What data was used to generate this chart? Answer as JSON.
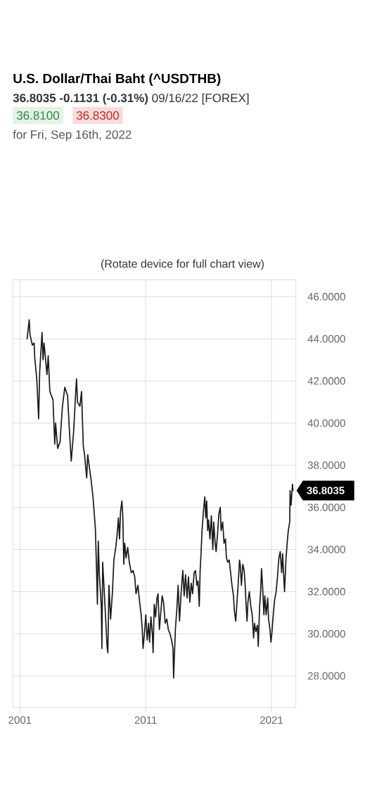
{
  "chart_data": {
    "type": "line",
    "title": "U.S. Dollar/Thai Baht (^USDTHB)",
    "subtitle": "**36.8035 -0.1131 (-0.31%)** 09/16/22 [FOREX]",
    "annotations": [
      "36.8100",
      "36.8300",
      "for Fri, Sep 16th, 2022",
      "(Rotate device for full chart view)",
      "36.8035"
    ],
    "x": [
      2001.57,
      2001.74,
      2001.8,
      2001.99,
      2002.13,
      2002.18,
      2002.34,
      2002.49,
      2002.57,
      2002.76,
      2002.84,
      2002.92,
      2003.15,
      2003.25,
      2003.38,
      2003.63,
      2003.77,
      2003.84,
      2004.0,
      2004.19,
      2004.38,
      2004.57,
      2004.79,
      2004.96,
      2005.08,
      2005.27,
      2005.42,
      2005.5,
      2005.58,
      2005.77,
      2005.9,
      2006.04,
      2006.14,
      2006.31,
      2006.39,
      2006.66,
      2006.81,
      2007.0,
      2007.1,
      2007.16,
      2007.23,
      2007.31,
      2007.47,
      2007.52,
      2007.58,
      2007.74,
      2007.93,
      2007.99,
      2008.08,
      2008.21,
      2008.36,
      2008.47,
      2008.62,
      2008.73,
      2008.83,
      2008.92,
      2009.0,
      2009.11,
      2009.18,
      2009.26,
      2009.33,
      2009.44,
      2009.57,
      2009.7,
      2009.85,
      2010.0,
      2010.13,
      2010.23,
      2010.38,
      2010.52,
      2010.64,
      2010.73,
      2010.79,
      2010.9,
      2011.01,
      2011.12,
      2011.23,
      2011.31,
      2011.42,
      2011.53,
      2011.59,
      2011.68,
      2011.79,
      2011.9,
      2011.98,
      2012.09,
      2012.2,
      2012.31,
      2012.42,
      2012.55,
      2012.68,
      2012.8,
      2012.93,
      2013.06,
      2013.17,
      2013.22,
      2013.36,
      2013.47,
      2013.58,
      2013.69,
      2013.8,
      2013.95,
      2014.06,
      2014.17,
      2014.29,
      2014.4,
      2014.51,
      2014.62,
      2014.73,
      2014.85,
      2014.96,
      2015.07,
      2015.16,
      2015.26,
      2015.33,
      2015.4,
      2015.48,
      2015.59,
      2015.7,
      2015.78,
      2015.85,
      2015.93,
      2016.0,
      2016.11,
      2016.22,
      2016.34,
      2016.41,
      2016.52,
      2016.6,
      2016.71,
      2016.82,
      2016.93,
      2017.0,
      2017.12,
      2017.23,
      2017.34,
      2017.42,
      2017.53,
      2017.64,
      2017.75,
      2017.86,
      2017.98,
      2018.05,
      2018.16,
      2018.27,
      2018.35,
      2018.46,
      2018.53,
      2018.61,
      2018.72,
      2018.83,
      2018.91,
      2018.98,
      2019.06,
      2019.13,
      2019.24,
      2019.36,
      2019.47,
      2019.58,
      2019.65,
      2019.76,
      2019.88,
      2019.95,
      2020.06,
      2020.14,
      2020.21,
      2020.29,
      2020.4,
      2020.47,
      2020.58,
      2020.7,
      2020.77,
      2020.88,
      2020.96,
      2021.03,
      2021.14,
      2021.25,
      2021.37,
      2021.48,
      2021.59,
      2021.7,
      2021.81,
      2021.89,
      2021.96,
      2022.04,
      2022.15,
      2022.26,
      2022.34,
      2022.45,
      2022.48,
      2022.56,
      2022.67,
      2022.71
    ],
    "values": [
      44.0,
      44.9,
      44.2,
      43.7,
      43.8,
      43.1,
      42.1,
      40.2,
      42.4,
      44.3,
      43.0,
      43.8,
      42.3,
      43.2,
      41.5,
      41.1,
      39.0,
      40.0,
      38.8,
      39.1,
      40.8,
      41.7,
      41.3,
      39.4,
      38.2,
      39.6,
      41.3,
      42.1,
      41.0,
      40.8,
      41.5,
      38.9,
      38.5,
      37.4,
      38.5,
      37.3,
      36.5,
      35.0,
      32.9,
      31.4,
      34.4,
      32.9,
      31.3,
      29.3,
      33.4,
      31.6,
      29.4,
      29.1,
      32.3,
      30.7,
      32.0,
      33.5,
      34.1,
      34.7,
      35.5,
      34.5,
      35.8,
      36.3,
      35.6,
      33.3,
      34.3,
      33.6,
      34.1,
      33.4,
      32.9,
      33.0,
      32.7,
      31.9,
      32.3,
      31.5,
      30.9,
      30.2,
      29.3,
      30.0,
      30.9,
      29.7,
      30.5,
      29.6,
      30.8,
      30.0,
      29.1,
      31.4,
      30.8,
      31.7,
      31.9,
      30.2,
      31.0,
      31.8,
      31.5,
      30.5,
      30.7,
      30.2,
      30.0,
      29.7,
      29.3,
      27.9,
      30.2,
      31.1,
      32.3,
      30.6,
      31.8,
      33.0,
      31.8,
      32.8,
      31.7,
      32.7,
      31.5,
      32.4,
      31.9,
      32.9,
      33.0,
      32.3,
      32.5,
      31.3,
      33.0,
      33.8,
      34.9,
      35.8,
      36.5,
      35.5,
      36.3,
      34.9,
      35.4,
      34.5,
      35.6,
      34.0,
      35.3,
      34.3,
      33.9,
      34.7,
      35.7,
      36.0,
      34.9,
      35.3,
      34.3,
      34.5,
      33.6,
      33.4,
      33.5,
      32.9,
      32.3,
      31.8,
      31.1,
      30.6,
      31.6,
      32.3,
      33.5,
      33.2,
      32.3,
      33.3,
      33.0,
      32.3,
      31.4,
      30.6,
      31.5,
      32.0,
      31.3,
      30.9,
      29.8,
      30.5,
      30.1,
      30.4,
      29.4,
      31.3,
      32.0,
      33.1,
      32.3,
      30.9,
      31.8,
      30.9,
      31.7,
      30.7,
      30.2,
      29.6,
      30.0,
      30.9,
      31.6,
      32.0,
      32.7,
      33.6,
      33.9,
      32.9,
      33.8,
      32.9,
      32.0,
      33.5,
      34.4,
      34.9,
      35.3,
      36.8,
      36.1,
      37.1,
      36.8
    ],
    "color": "#1a1a1a",
    "xlim": [
      2000.44,
      2022.94
    ],
    "ylim": [
      26.5,
      46.8
    ],
    "xticks": [
      2001,
      2011,
      2021
    ],
    "yticks": [
      {
        "value": 28,
        "label": "28.0000"
      },
      {
        "value": 30,
        "label": "30.0000"
      },
      {
        "value": 32,
        "label": "32.0000"
      },
      {
        "value": 34,
        "label": "34.0000"
      },
      {
        "value": 36,
        "label": "36.0000"
      },
      {
        "value": 38,
        "label": "38.0000"
      },
      {
        "value": 40,
        "label": "40.0000"
      },
      {
        "value": 42,
        "label": "42.0000"
      },
      {
        "value": 44,
        "label": "44.0000"
      },
      {
        "value": 46,
        "label": "46.0000"
      }
    ],
    "grid": true
  }
}
